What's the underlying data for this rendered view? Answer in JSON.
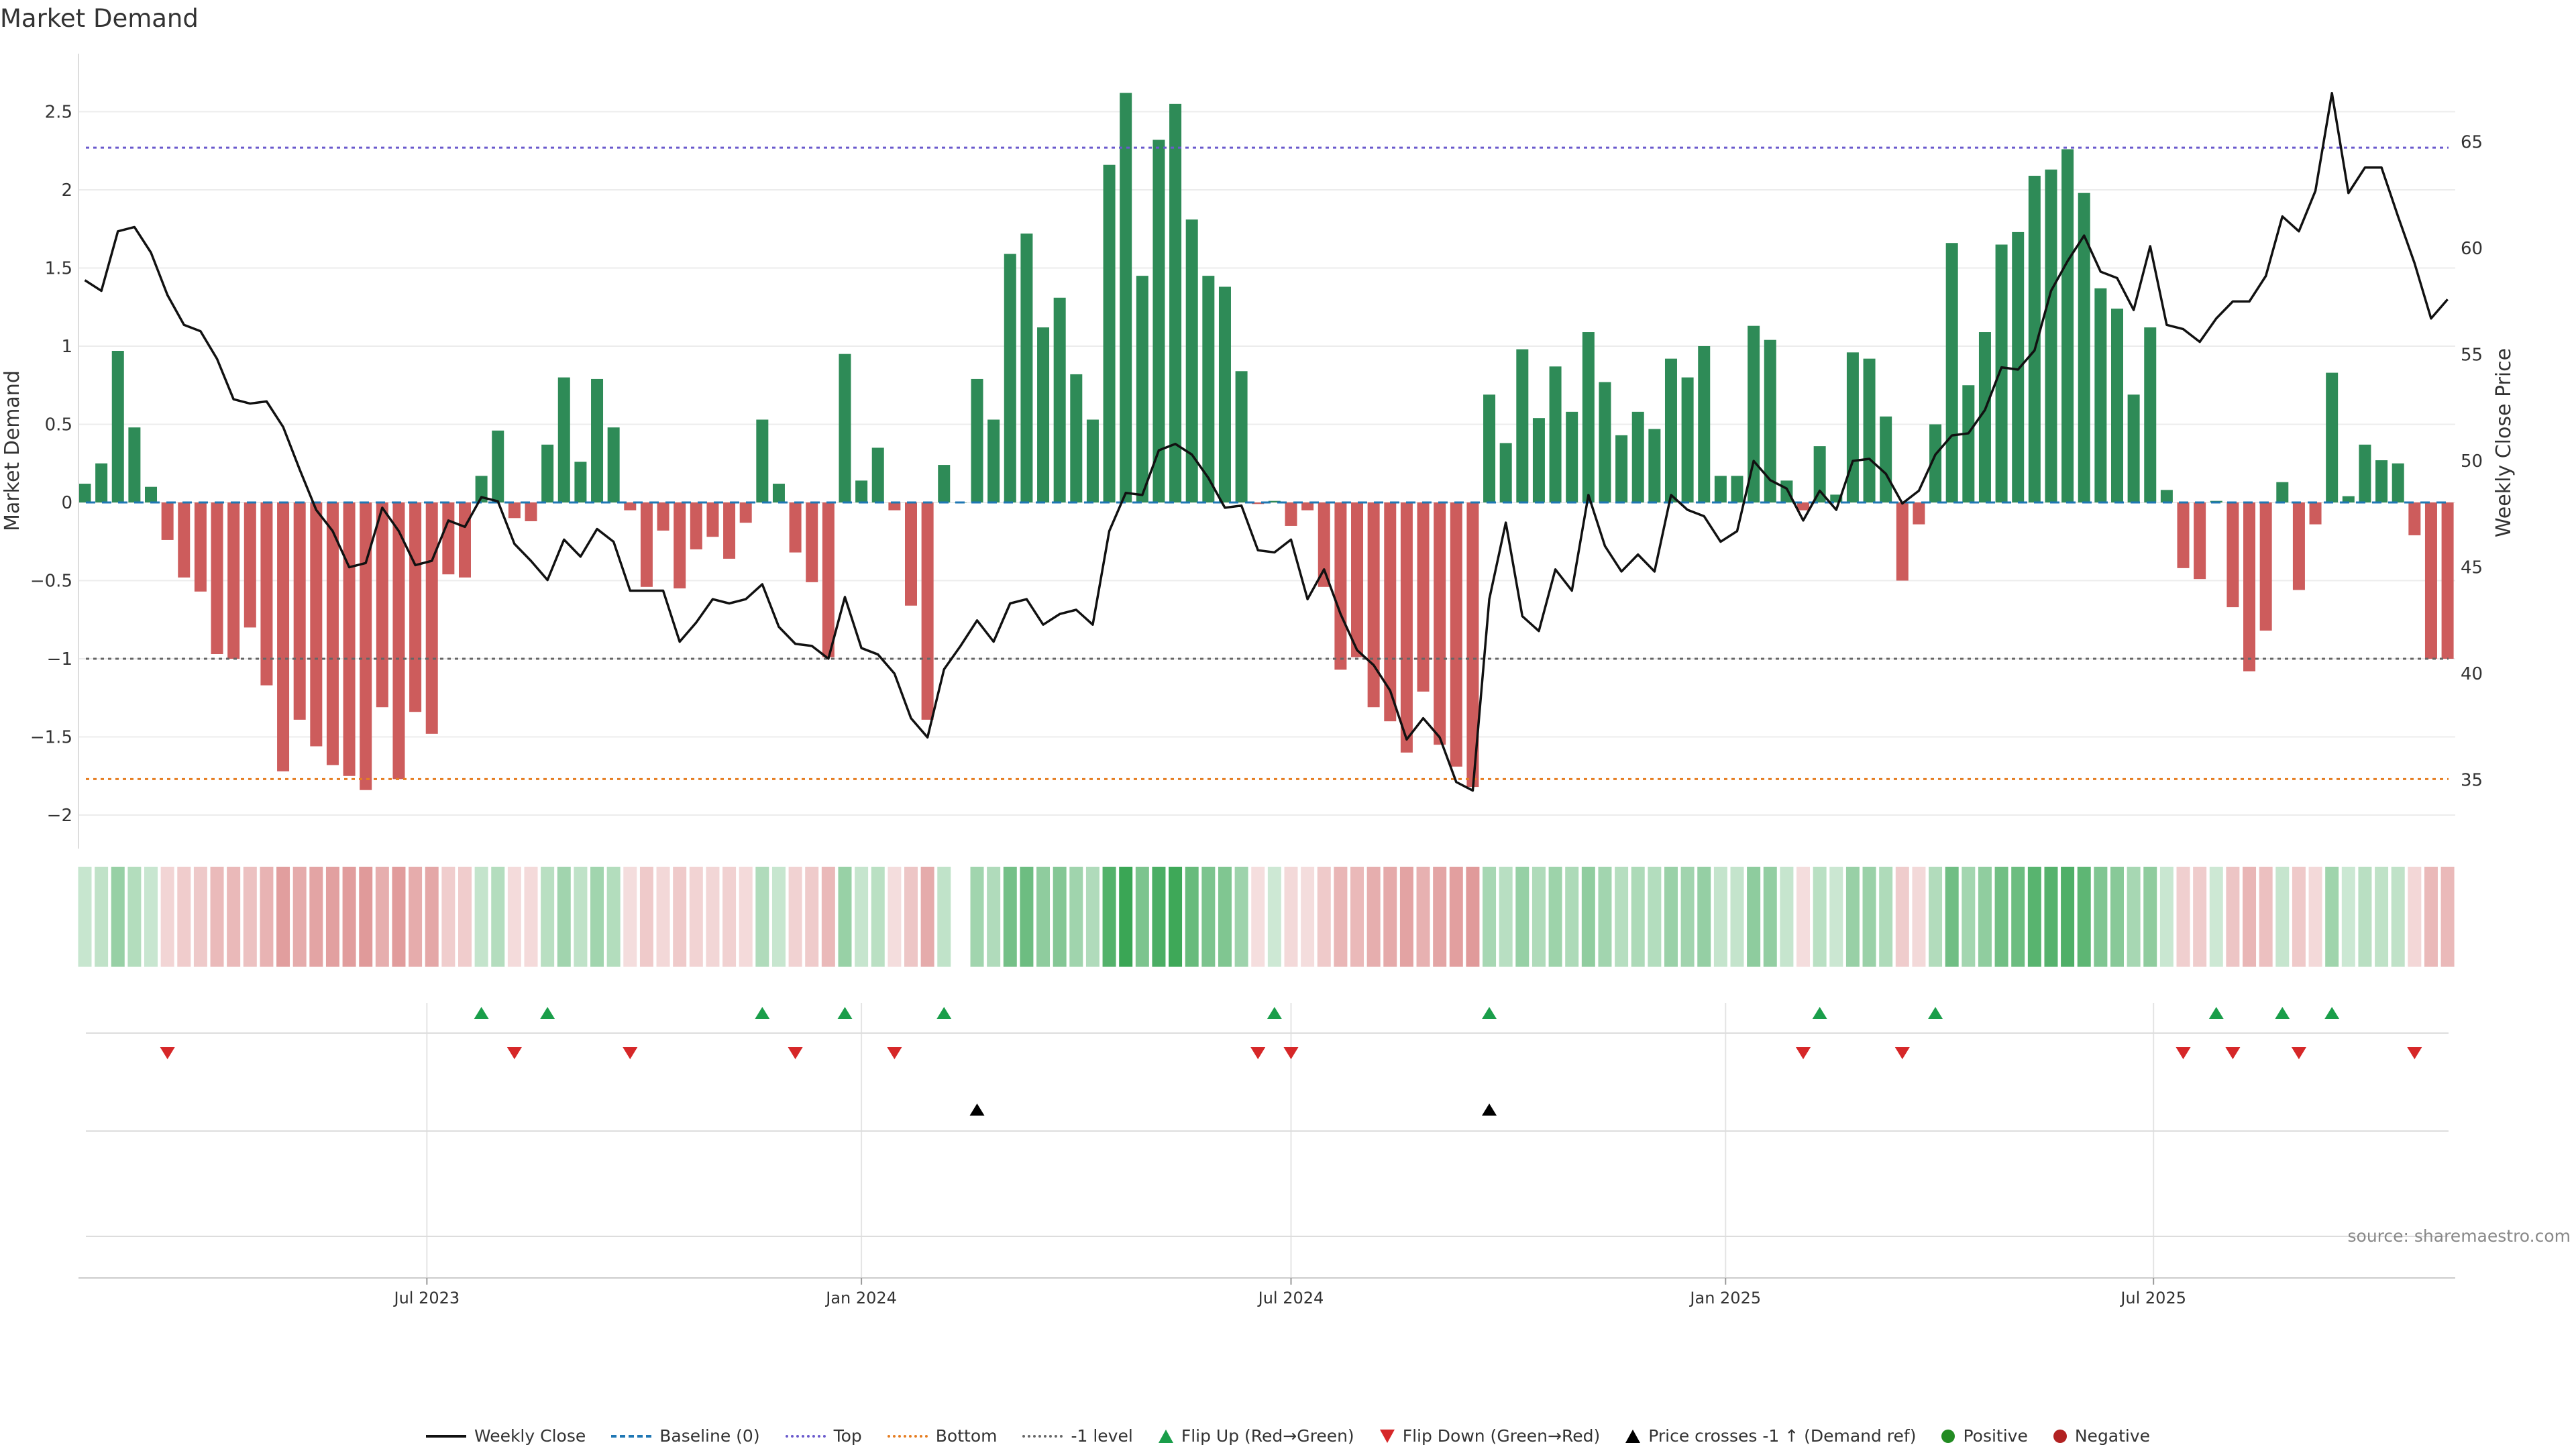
{
  "chart_data": {
    "type": "bar+line",
    "title": "Market Demand",
    "ylabel": "Market Demand",
    "y2label": "Weekly Close Price",
    "ylim": [
      -2.21,
      2.87
    ],
    "y_ticks": [
      "2.5",
      "2",
      "1.5",
      "1",
      "0.5",
      "0",
      "−0.5",
      "−1",
      "−1.5",
      "−2"
    ],
    "y_tick_values": [
      2.5,
      2,
      1.5,
      1,
      0.5,
      0,
      -0.5,
      -1,
      -1.5,
      -2
    ],
    "y2_ticks": [
      "65",
      "60",
      "55",
      "50",
      "45",
      "40",
      "35"
    ],
    "y2_tick_values": [
      65,
      60,
      55,
      50,
      45,
      40,
      35
    ],
    "x_ticks": [
      {
        "label": "Jul 2023",
        "week": 21.7
      },
      {
        "label": "Jan 2024",
        "week": 48.0
      },
      {
        "label": "Jul 2024",
        "week": 74.0
      },
      {
        "label": "Jan 2025",
        "week": 100.3
      },
      {
        "label": "Jul 2025",
        "week": 126.2
      }
    ],
    "reference_lines": {
      "baseline": 0,
      "top": 2.27,
      "bottom": -1.77,
      "minus_one": -1
    },
    "series": [
      {
        "name": "Market Demand",
        "type": "bar",
        "values": [
          0.12,
          0.25,
          0.97,
          0.48,
          0.1,
          -0.24,
          -0.48,
          -0.57,
          -0.97,
          -1.0,
          -0.8,
          -1.17,
          -1.72,
          -1.39,
          -1.56,
          -1.68,
          -1.75,
          -1.84,
          -1.31,
          -1.77,
          -1.34,
          -1.48,
          -0.46,
          -0.48,
          0.17,
          0.46,
          -0.1,
          -0.12,
          0.37,
          0.8,
          0.26,
          0.79,
          0.48,
          -0.05,
          -0.54,
          -0.18,
          -0.55,
          -0.3,
          -0.22,
          -0.36,
          -0.13,
          0.53,
          0.12,
          -0.32,
          -0.51,
          -0.99,
          0.95,
          0.14,
          0.35,
          -0.05,
          -0.66,
          -1.39,
          0.24,
          0.0,
          0.79,
          0.53,
          1.59,
          1.72,
          1.12,
          1.31,
          0.82,
          0.53,
          2.16,
          2.62,
          1.45,
          2.32,
          2.55,
          1.81,
          1.45,
          1.38,
          0.84,
          -0.01,
          0.01,
          -0.15,
          -0.05,
          -0.54,
          -1.07,
          -0.99,
          -1.31,
          -1.4,
          -1.6,
          -1.21,
          -1.55,
          -1.69,
          -1.82,
          0.69,
          0.38,
          0.98,
          0.54,
          0.87,
          0.58,
          1.09,
          0.77,
          0.43,
          0.58,
          0.47,
          0.92,
          0.8,
          1.0,
          0.17,
          0.17,
          1.13,
          1.04,
          0.14,
          -0.05,
          0.36,
          0.05,
          0.96,
          0.92,
          0.55,
          -0.5,
          -0.14,
          0.5,
          1.66,
          0.75,
          1.09,
          1.65,
          1.73,
          2.09,
          2.13,
          2.26,
          1.98,
          1.37,
          1.24,
          0.69,
          1.12,
          0.08,
          -0.42,
          -0.49,
          0.01,
          -0.67,
          -1.08,
          -0.82,
          0.13,
          -0.56,
          -0.14,
          0.83,
          0.04,
          0.37,
          0.27,
          0.25,
          -0.21,
          -1.0,
          -1.0
        ]
      },
      {
        "name": "Weekly Close",
        "type": "line",
        "axis": "right",
        "values": [
          58.5,
          58.0,
          60.8,
          61.0,
          59.8,
          57.8,
          56.4,
          56.1,
          54.8,
          52.9,
          52.7,
          52.8,
          51.6,
          49.6,
          47.7,
          46.7,
          45.0,
          45.2,
          47.8,
          46.7,
          45.1,
          45.3,
          47.2,
          46.9,
          48.3,
          48.1,
          46.1,
          45.3,
          44.4,
          46.3,
          45.5,
          46.8,
          46.2,
          43.9,
          43.9,
          43.9,
          41.5,
          42.4,
          43.5,
          43.3,
          43.5,
          44.2,
          42.2,
          41.4,
          41.3,
          40.7,
          43.6,
          41.2,
          40.9,
          40.0,
          37.9,
          37.0,
          40.2,
          41.3,
          42.5,
          41.5,
          43.3,
          43.5,
          42.3,
          42.8,
          43.0,
          42.3,
          46.7,
          48.5,
          48.4,
          50.5,
          50.8,
          50.3,
          49.2,
          47.8,
          47.9,
          45.8,
          45.7,
          46.3,
          43.5,
          44.9,
          42.8,
          41.1,
          40.4,
          39.2,
          36.9,
          37.9,
          37.0,
          34.9,
          34.5,
          43.5,
          47.1,
          42.7,
          42.0,
          44.9,
          43.9,
          48.4,
          46.0,
          44.8,
          45.6,
          44.8,
          48.4,
          47.7,
          47.4,
          46.2,
          46.7,
          50.0,
          49.1,
          48.7,
          47.2,
          48.6,
          47.7,
          50.0,
          50.1,
          49.4,
          48.0,
          48.6,
          50.3,
          51.2,
          51.3,
          52.4,
          54.4,
          54.3,
          55.2,
          58.0,
          59.4,
          60.6,
          58.9,
          58.6,
          57.1,
          60.1,
          56.4,
          56.2,
          55.6,
          56.7,
          57.5,
          57.5,
          58.7,
          61.5,
          60.8,
          62.7,
          67.3,
          62.6,
          63.8,
          63.8,
          61.5,
          59.3,
          56.7,
          57.6
        ]
      }
    ],
    "events": {
      "flip_up_weeks": [
        25,
        29,
        42,
        47,
        53,
        73,
        86,
        106,
        113,
        130,
        134,
        137
      ],
      "flip_down_weeks": [
        6,
        27,
        34,
        44,
        50,
        72,
        74,
        105,
        111,
        128,
        131,
        135,
        142
      ],
      "price_cross_weeks": [
        55,
        86
      ]
    },
    "legend_placement": "bottom-center"
  },
  "legend": {
    "weekly_close": "Weekly Close",
    "baseline": "Baseline (0)",
    "top": "Top",
    "bottom": "Bottom",
    "minus_one": "-1 level",
    "flip_up": "Flip Up (Red→Green)",
    "flip_down": "Flip Down (Green→Red)",
    "price_cross": "Price crosses -1 ↑ (Demand ref)",
    "positive": "Positive",
    "negative": "Negative"
  },
  "source": "source: sharemaestro.com",
  "colors": {
    "positive": "#2e8b57",
    "negative": "#cd5c5c",
    "price": "#111111",
    "baseline": "#1f77b4",
    "top": "#6a5acd",
    "bottom": "#e67e22",
    "minus_one": "#666666",
    "flip_up": "#1a9e4a",
    "flip_down": "#d62728",
    "cross": "#000000",
    "legend_positive": "#228b22",
    "legend_negative": "#b22222"
  }
}
